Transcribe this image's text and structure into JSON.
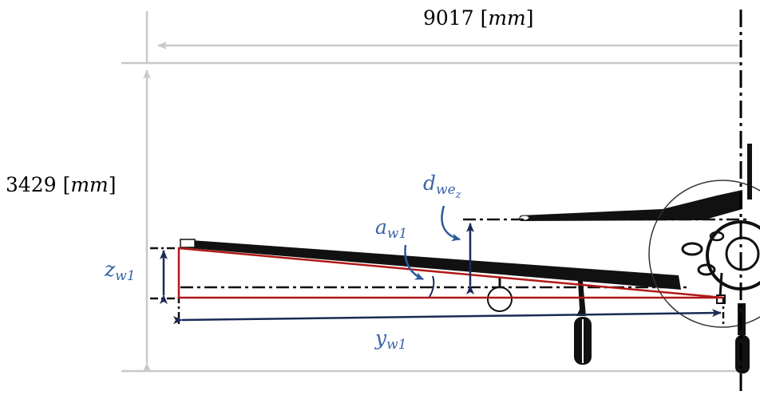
{
  "dimensions": {
    "span": {
      "value": "9017",
      "unit": "mm"
    },
    "height": {
      "value": "3429",
      "unit": "mm"
    }
  },
  "labels": {
    "z_main": "z",
    "z_sub": "w1",
    "y_main": "y",
    "y_sub": "w1",
    "a_main": "a",
    "a_sub": "w1",
    "d_main": "d",
    "d_sub": "we",
    "d_subsub": "z"
  },
  "colors": {
    "construction_line": "#c8c8c8",
    "triangle": "#b01818",
    "arrow": "#1a2b55",
    "symbol": "#3a64a8",
    "aircraft": "#111111"
  }
}
